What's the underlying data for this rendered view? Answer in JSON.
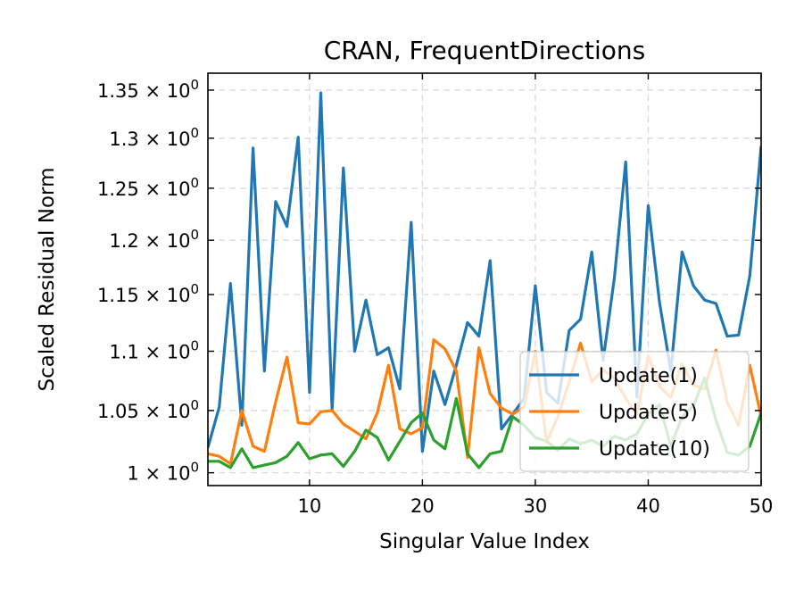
{
  "chart_data": {
    "type": "line",
    "title": "CRAN, FrequentDirections",
    "xlabel": "Singular Value Index",
    "ylabel": "Scaled Residual Norm",
    "xlim": [
      1,
      50
    ],
    "ylim": [
      0.99,
      1.368
    ],
    "y_scale": "log",
    "grid": true,
    "legend_position": "lower-right",
    "x_ticks": [
      10,
      20,
      30,
      40,
      50
    ],
    "y_ticks": [
      {
        "value": 1.0,
        "mantissa": "1",
        "exponent": "0"
      },
      {
        "value": 1.05,
        "mantissa": "1.05",
        "exponent": "0"
      },
      {
        "value": 1.1,
        "mantissa": "1.1",
        "exponent": "0"
      },
      {
        "value": 1.15,
        "mantissa": "1.15",
        "exponent": "0"
      },
      {
        "value": 1.2,
        "mantissa": "1.2",
        "exponent": "0"
      },
      {
        "value": 1.25,
        "mantissa": "1.25",
        "exponent": "0"
      },
      {
        "value": 1.3,
        "mantissa": "1.3",
        "exponent": "0"
      },
      {
        "value": 1.35,
        "mantissa": "1.35",
        "exponent": "0"
      }
    ],
    "times_symbol": "×",
    "x": [
      1,
      2,
      3,
      4,
      5,
      6,
      7,
      8,
      9,
      10,
      11,
      12,
      13,
      14,
      15,
      16,
      17,
      18,
      19,
      20,
      21,
      22,
      23,
      24,
      25,
      26,
      27,
      28,
      29,
      30,
      31,
      32,
      33,
      34,
      35,
      36,
      37,
      38,
      39,
      40,
      41,
      42,
      43,
      44,
      45,
      46,
      47,
      48,
      49,
      50
    ],
    "series": [
      {
        "name": "Update(1)",
        "color": "#1f77b4",
        "values": [
          1.02,
          1.053,
          1.16,
          1.038,
          1.29,
          1.083,
          1.237,
          1.213,
          1.301,
          1.065,
          1.347,
          1.05,
          1.27,
          1.1,
          1.145,
          1.097,
          1.103,
          1.068,
          1.217,
          1.017,
          1.083,
          1.055,
          1.088,
          1.125,
          1.113,
          1.181,
          1.035,
          1.047,
          1.06,
          1.158,
          1.065,
          1.056,
          1.118,
          1.128,
          1.189,
          1.092,
          1.165,
          1.276,
          1.061,
          1.233,
          1.143,
          1.083,
          1.189,
          1.158,
          1.145,
          1.142,
          1.113,
          1.114,
          1.167,
          1.292
        ]
      },
      {
        "name": "Update(5)",
        "color": "#ff7f0e",
        "values": [
          1.015,
          1.013,
          1.007,
          1.05,
          1.021,
          1.017,
          1.057,
          1.095,
          1.04,
          1.039,
          1.049,
          1.05,
          1.039,
          1.033,
          1.027,
          1.048,
          1.088,
          1.035,
          1.031,
          1.036,
          1.11,
          1.102,
          1.083,
          1.012,
          1.103,
          1.064,
          1.052,
          1.047,
          1.053,
          1.1,
          1.024,
          1.045,
          1.074,
          1.107,
          1.074,
          1.084,
          1.077,
          1.06,
          1.047,
          1.096,
          1.07,
          1.061,
          1.089,
          1.071,
          1.068,
          1.101,
          1.057,
          1.038,
          1.088,
          1.045
        ]
      },
      {
        "name": "Update(10)",
        "color": "#2ca02c",
        "values": [
          1.009,
          1.009,
          1.004,
          1.019,
          1.004,
          1.006,
          1.008,
          1.013,
          1.024,
          1.011,
          1.014,
          1.015,
          1.005,
          1.017,
          1.034,
          1.028,
          1.01,
          1.025,
          1.04,
          1.048,
          1.026,
          1.019,
          1.06,
          1.015,
          1.004,
          1.015,
          1.017,
          1.045,
          1.038,
          1.028,
          1.025,
          1.018,
          1.027,
          1.023,
          1.026,
          1.021,
          1.029,
          1.026,
          1.031,
          1.047,
          1.055,
          1.021,
          1.045,
          1.054,
          1.077,
          1.042,
          1.016,
          1.014,
          1.021,
          1.048
        ]
      }
    ]
  }
}
